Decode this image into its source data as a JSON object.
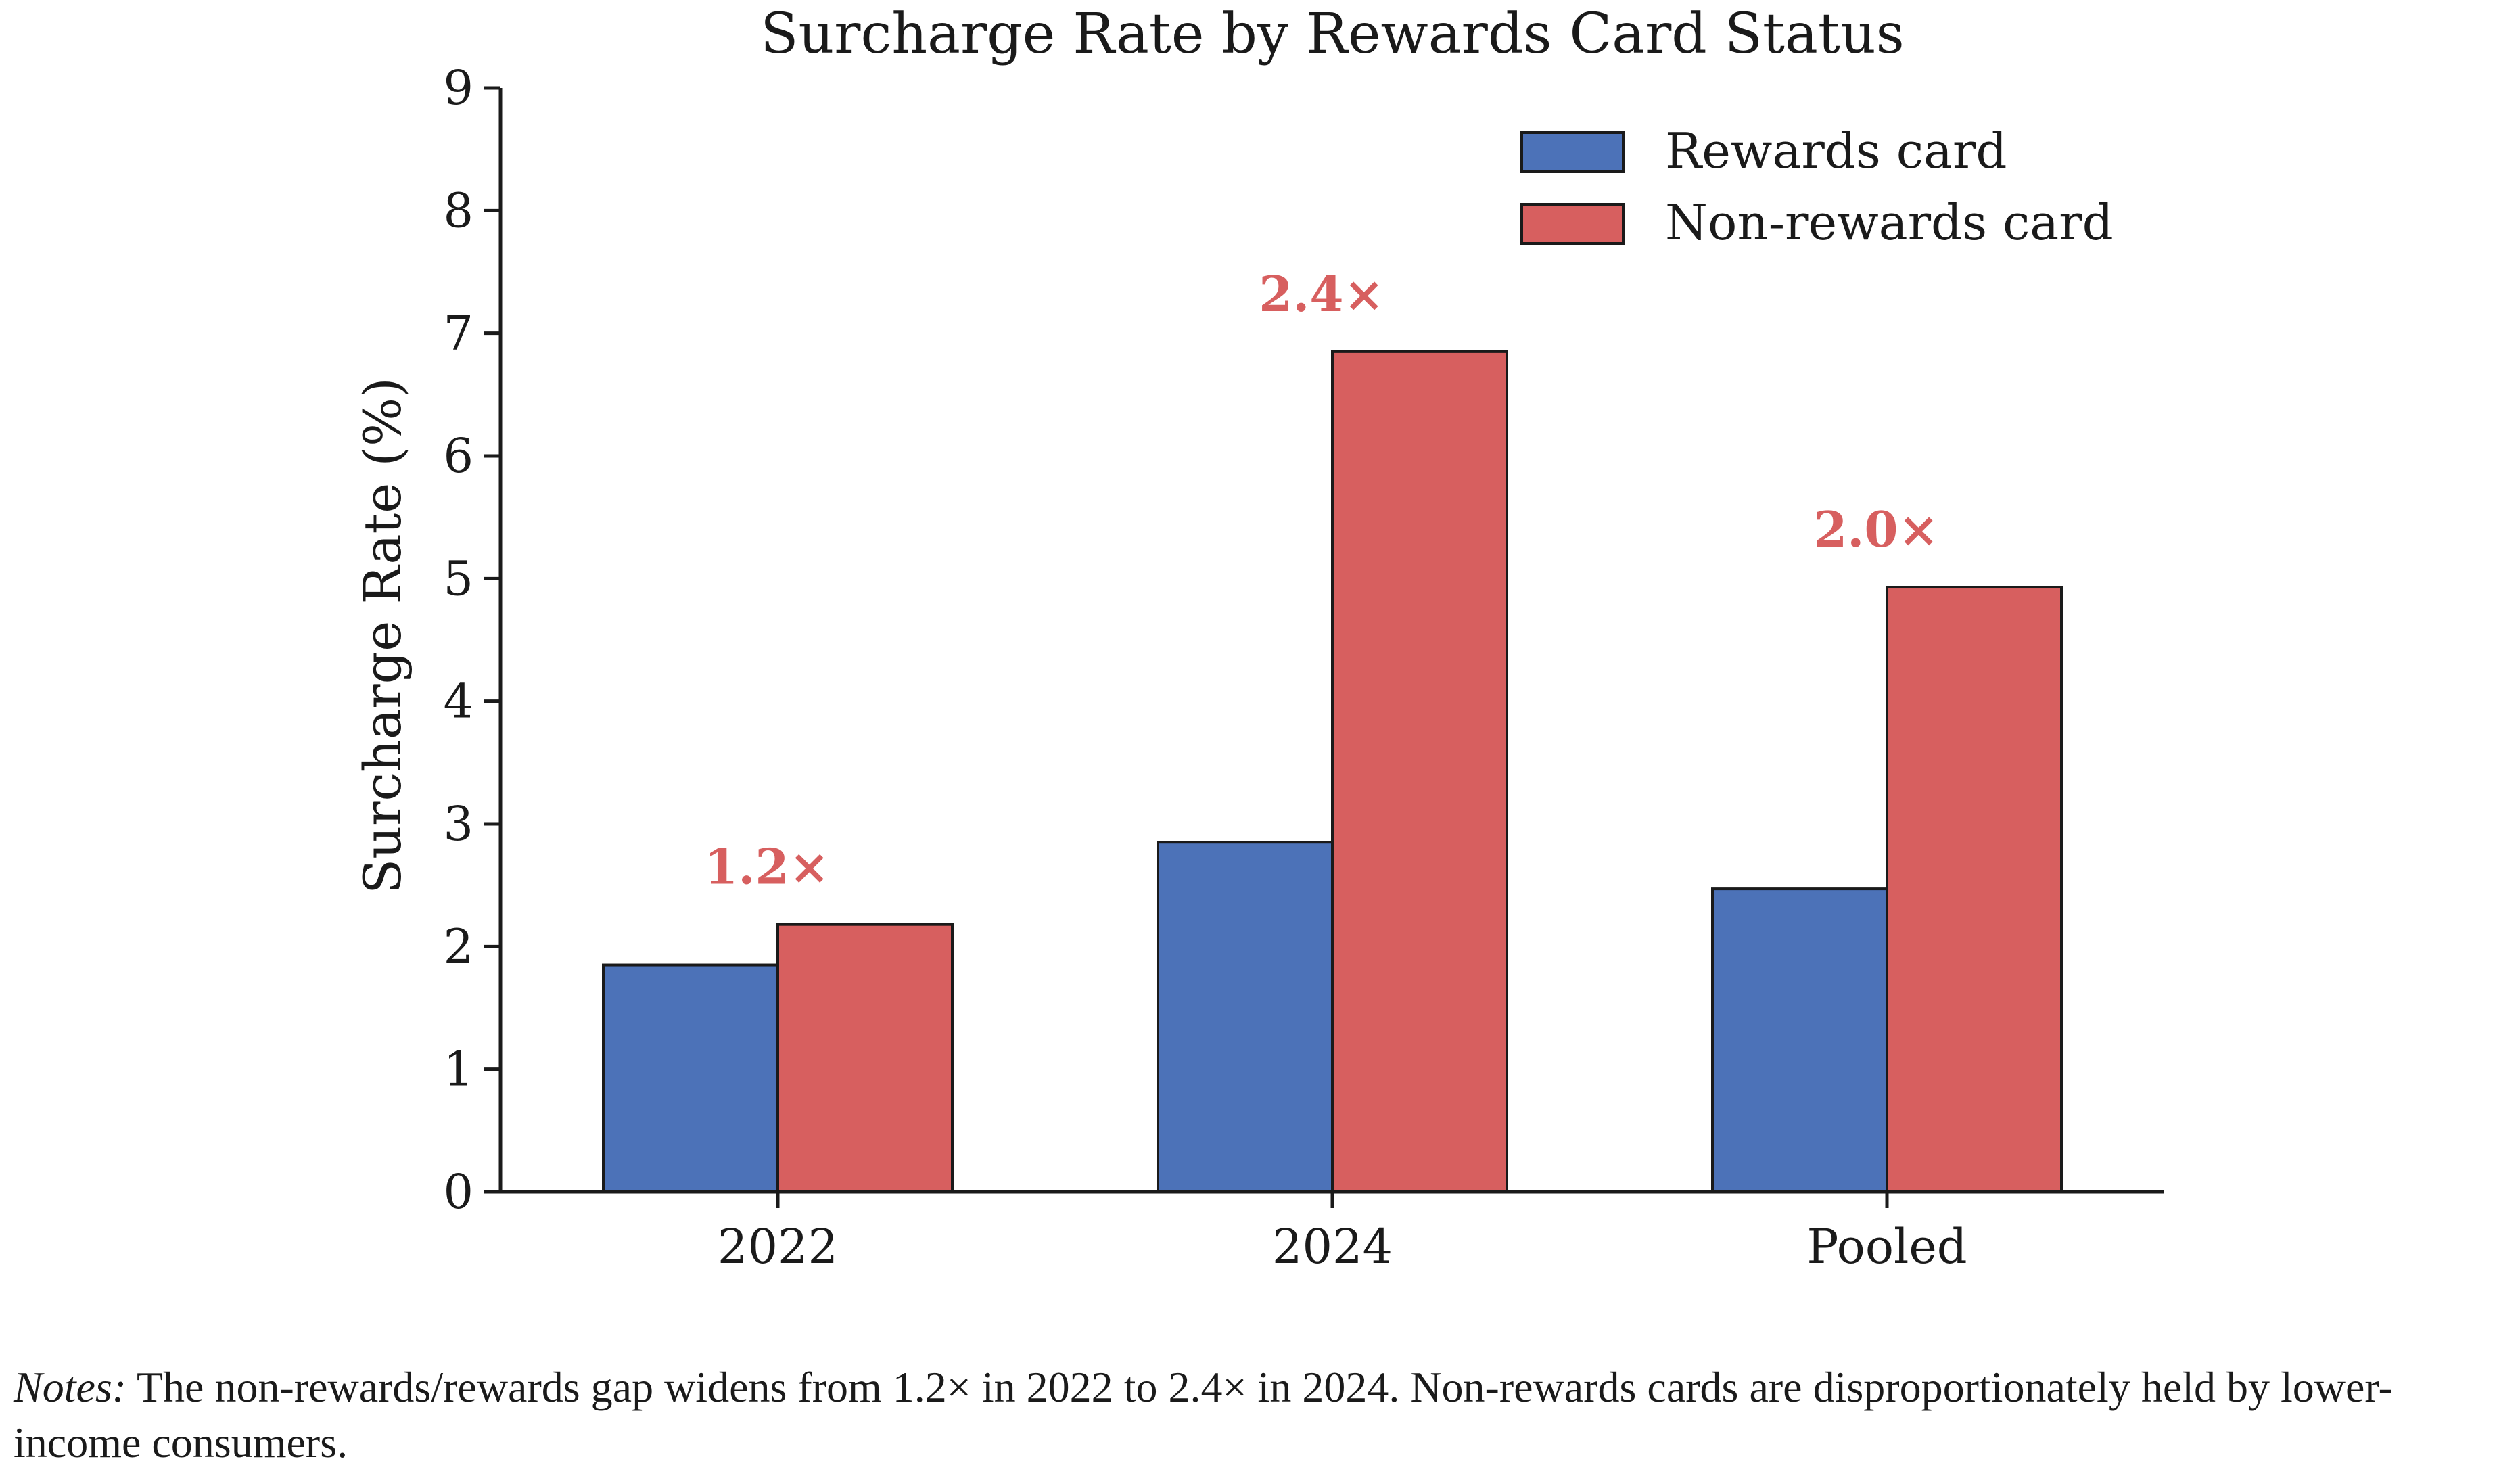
{
  "chart_data": {
    "type": "bar",
    "title": "Surcharge Rate by Rewards Card Status",
    "xlabel": "",
    "ylabel": "Surcharge Rate (%)",
    "ylim": [
      0,
      9
    ],
    "yticks": [
      0,
      1,
      2,
      3,
      4,
      5,
      6,
      7,
      8,
      9
    ],
    "categories": [
      "2022",
      "2024",
      "Pooled"
    ],
    "series": [
      {
        "name": "Rewards card",
        "color": "#4c72b8",
        "values": [
          1.85,
          2.85,
          2.47
        ]
      },
      {
        "name": "Non-rewards card",
        "color": "#d75f5f",
        "values": [
          2.18,
          6.85,
          4.93
        ]
      }
    ],
    "annotations": [
      "1.2×",
      "2.4×",
      "2.0×"
    ],
    "annotation_color": "#d75f5f",
    "legend_position": "top-right",
    "grid": false
  },
  "notes": {
    "label": "Notes:",
    "text": " The non-rewards/rewards gap widens from 1.2× in 2022 to 2.4× in 2024. Non-rewards cards are disproportionately held by lower-income consumers."
  }
}
